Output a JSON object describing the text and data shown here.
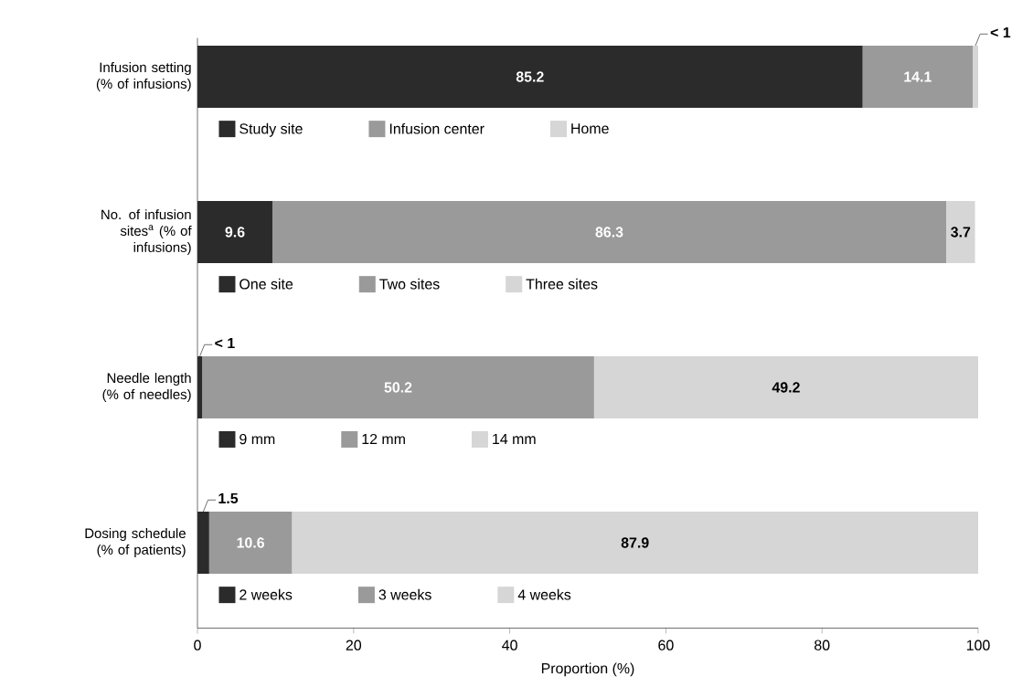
{
  "chart_data": [
    {
      "type": "bar",
      "orientation": "horizontal",
      "stacked": true,
      "categories": [
        "Infusion setting (% of infusions)"
      ],
      "xlim": [
        0,
        100
      ],
      "tick_labels": "y",
      "legend": "bottom",
      "series": [
        {
          "name": "Study site",
          "color": "#2b2b2b",
          "values": [
            85.2
          ],
          "value_labels": [
            "85.2"
          ]
        },
        {
          "name": "Infusion center",
          "color": "#9a9a9a",
          "values": [
            14.1
          ],
          "value_labels": [
            "14.1"
          ]
        },
        {
          "name": "Home",
          "color": "#d6d6d6",
          "values": [
            0.7
          ],
          "value_labels": [
            "< 1"
          ]
        }
      ]
    },
    {
      "type": "bar",
      "orientation": "horizontal",
      "stacked": true,
      "categories": [
        "No. of infusion sites$^{a}$ (% of infusions)"
      ],
      "xlim": [
        0,
        100
      ],
      "tick_labels": "y",
      "legend": "bottom",
      "series": [
        {
          "name": "One site",
          "color": "#2b2b2b",
          "values": [
            9.6
          ],
          "value_labels": [
            "9.6"
          ]
        },
        {
          "name": "Two sites",
          "color": "#9a9a9a",
          "values": [
            86.3
          ],
          "value_labels": [
            "86.3"
          ]
        },
        {
          "name": "Three sites",
          "color": "#d6d6d6",
          "values": [
            3.7
          ],
          "value_labels": [
            "3.7"
          ]
        }
      ]
    },
    {
      "type": "bar",
      "orientation": "horizontal",
      "stacked": true,
      "categories": [
        "Needle length (% of needles)"
      ],
      "xlim": [
        0,
        100
      ],
      "tick_labels": "y",
      "legend": "bottom",
      "series": [
        {
          "name": "9 mm",
          "color": "#2b2b2b",
          "values": [
            0.6
          ],
          "value_labels": [
            "< 1"
          ]
        },
        {
          "name": "12 mm",
          "color": "#9a9a9a",
          "values": [
            50.2
          ],
          "value_labels": [
            "50.2"
          ]
        },
        {
          "name": "14 mm",
          "color": "#d6d6d6",
          "values": [
            49.2
          ],
          "value_labels": [
            "49.2"
          ]
        }
      ]
    },
    {
      "type": "bar",
      "orientation": "horizontal",
      "stacked": true,
      "categories": [
        "Dosing schedule (% of patients)"
      ],
      "xlim": [
        0,
        100
      ],
      "xticks": [
        0,
        20,
        40,
        60,
        80,
        100
      ],
      "xlabel": "Proportion (%)",
      "legend": "bottom",
      "series": [
        {
          "name": "2 weeks",
          "color": "#2b2b2b",
          "values": [
            1.5
          ],
          "value_labels": [
            "1.5"
          ]
        },
        {
          "name": "3 weeks",
          "color": "#9a9a9a",
          "values": [
            10.6
          ],
          "value_labels": [
            "10.6"
          ]
        },
        {
          "name": "4 weeks",
          "color": "#d6d6d6",
          "values": [
            87.9
          ],
          "value_labels": [
            "87.9"
          ]
        }
      ]
    }
  ]
}
